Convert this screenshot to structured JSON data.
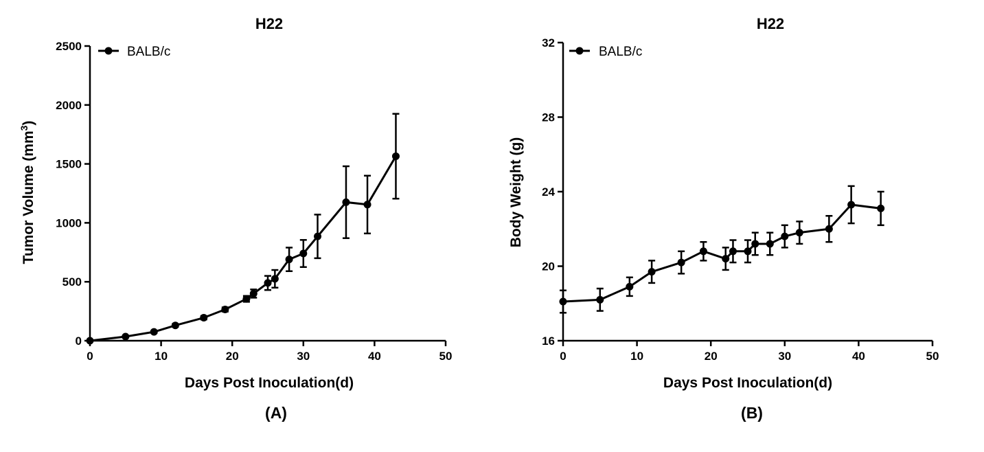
{
  "chart_data": [
    {
      "type": "line",
      "title": "H22",
      "xlabel": "Days Post Inoculation(d)",
      "ylabel_prefix": "Tumor Volume (mm",
      "ylabel_sup": "3",
      "ylabel_suffix": ")",
      "panel_label": "(A)",
      "xlim": [
        0,
        50
      ],
      "ylim": [
        0,
        2500
      ],
      "xticks": [
        0,
        10,
        20,
        30,
        40,
        50
      ],
      "yticks": [
        0,
        500,
        1000,
        1500,
        2000,
        2500
      ],
      "legend": "BALB/c",
      "series": [
        {
          "name": "BALB/c",
          "x": [
            0,
            5,
            9,
            12,
            16,
            19,
            22,
            23,
            25,
            26,
            28,
            30,
            32,
            36,
            39,
            43
          ],
          "y": [
            0,
            35,
            75,
            130,
            195,
            265,
            355,
            400,
            490,
            525,
            690,
            740,
            885,
            1175,
            1155,
            1565
          ],
          "err": [
            0,
            8,
            10,
            12,
            15,
            18,
            25,
            35,
            60,
            75,
            100,
            115,
            185,
            305,
            245,
            360
          ]
        }
      ]
    },
    {
      "type": "line",
      "title": "H22",
      "xlabel": "Days Post Inoculation(d)",
      "ylabel_prefix": "Body Weight (g)",
      "ylabel_sup": "",
      "ylabel_suffix": "",
      "panel_label": "(B)",
      "xlim": [
        0,
        50
      ],
      "ylim": [
        16,
        32
      ],
      "xticks": [
        0,
        10,
        20,
        30,
        40,
        50
      ],
      "yticks": [
        16,
        20,
        24,
        28,
        32
      ],
      "legend": "BALB/c",
      "series": [
        {
          "name": "BALB/c",
          "x": [
            0,
            5,
            9,
            12,
            16,
            19,
            22,
            23,
            25,
            26,
            28,
            30,
            32,
            36,
            39,
            43
          ],
          "y": [
            18.1,
            18.2,
            18.9,
            19.7,
            20.2,
            20.8,
            20.4,
            20.8,
            20.8,
            21.2,
            21.2,
            21.6,
            21.8,
            22.0,
            23.3,
            23.1
          ],
          "err": [
            0.6,
            0.6,
            0.5,
            0.6,
            0.6,
            0.5,
            0.6,
            0.6,
            0.6,
            0.6,
            0.6,
            0.6,
            0.6,
            0.7,
            1.0,
            0.9
          ]
        }
      ]
    }
  ]
}
